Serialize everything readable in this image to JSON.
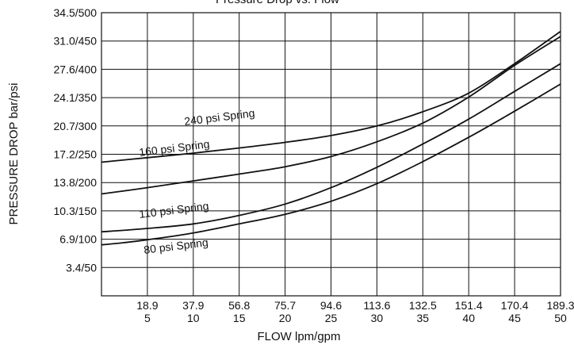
{
  "chart_data": {
    "type": "line",
    "title": "Pressure Drop vs. Flow",
    "xlabel": "FLOW lpm/gpm",
    "ylabel": "PRESSURE DROP bar/psi",
    "xlim": [
      0,
      50
    ],
    "ylim": [
      0,
      500
    ],
    "grid": true,
    "legend": "none (curves labeled inline)",
    "x_ticks": [
      {
        "value": 5,
        "label_top": "18.9",
        "label_bottom": "5"
      },
      {
        "value": 10,
        "label_top": "37.9",
        "label_bottom": "10"
      },
      {
        "value": 15,
        "label_top": "56.8",
        "label_bottom": "15"
      },
      {
        "value": 20,
        "label_top": "75.7",
        "label_bottom": "20"
      },
      {
        "value": 25,
        "label_top": "94.6",
        "label_bottom": "25"
      },
      {
        "value": 30,
        "label_top": "113.6",
        "label_bottom": "30"
      },
      {
        "value": 35,
        "label_top": "132.5",
        "label_bottom": "35"
      },
      {
        "value": 40,
        "label_top": "151.4",
        "label_bottom": "40"
      },
      {
        "value": 45,
        "label_top": "170.4",
        "label_bottom": "45"
      },
      {
        "value": 50,
        "label_top": "189.3",
        "label_bottom": "50"
      }
    ],
    "y_ticks": [
      {
        "value": 50,
        "label": "3.4/50"
      },
      {
        "value": 100,
        "label": "6.9/100"
      },
      {
        "value": 150,
        "label": "10.3/150"
      },
      {
        "value": 200,
        "label": "13.8/200"
      },
      {
        "value": 250,
        "label": "17.2/250"
      },
      {
        "value": 300,
        "label": "20.7/300"
      },
      {
        "value": 350,
        "label": "24.1/350"
      },
      {
        "value": 400,
        "label": "27.6/400"
      },
      {
        "value": 450,
        "label": "31.0/450"
      },
      {
        "value": 500,
        "label": "34.5/500"
      }
    ],
    "series": [
      {
        "name": "240 psi Spring",
        "label": "240 psi Spring",
        "x": [
          0,
          5,
          10,
          15,
          20,
          25,
          30,
          35,
          40,
          45,
          50
        ],
        "y": [
          236,
          244,
          252,
          261,
          271,
          283,
          300,
          325,
          358,
          410,
          467
        ]
      },
      {
        "name": "160 psi Spring",
        "label": "160 psi Spring",
        "x": [
          0,
          5,
          10,
          15,
          20,
          25,
          30,
          35,
          40,
          45,
          50
        ],
        "y": [
          180,
          191,
          203,
          215,
          228,
          246,
          272,
          305,
          351,
          407,
          458
        ]
      },
      {
        "name": "110 psi Spring",
        "label": "110 psi Spring",
        "x": [
          0,
          5,
          10,
          15,
          20,
          25,
          30,
          35,
          40,
          45,
          50
        ],
        "y": [
          113,
          119,
          127,
          142,
          162,
          191,
          227,
          268,
          312,
          361,
          410
        ]
      },
      {
        "name": "80 psi Spring",
        "label": "80 psi Spring",
        "x": [
          0,
          2.5,
          5,
          10,
          15,
          20,
          25,
          30,
          35,
          40,
          45,
          50
        ],
        "y": [
          90,
          94,
          99,
          111,
          127,
          144,
          167,
          198,
          237,
          280,
          326,
          374
        ]
      }
    ],
    "partial_title_visible": "Pressure Drop vs. Flow"
  }
}
